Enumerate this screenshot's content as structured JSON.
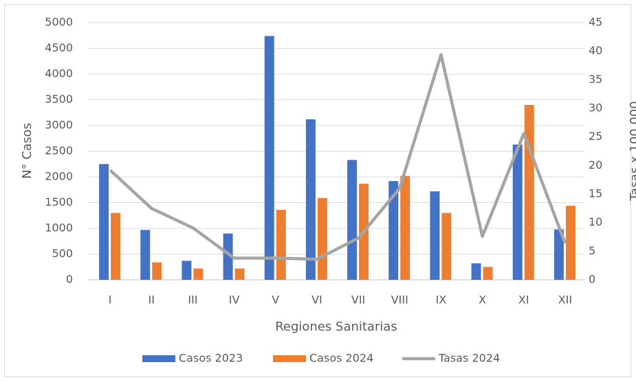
{
  "chart_data": {
    "type": "bar",
    "x_label": "Regiones Sanitarias",
    "y_label": "N° Casos",
    "y2_label": "Tasas x 100.000",
    "categories": [
      "I",
      "II",
      "III",
      "IV",
      "V",
      "VI",
      "VII",
      "VIII",
      "IX",
      "X",
      "XI",
      "XII"
    ],
    "series": [
      {
        "name": "Casos 2023",
        "color": "#4472c4",
        "type": "bar",
        "values": [
          2250,
          970,
          370,
          900,
          4740,
          3120,
          2330,
          1920,
          1720,
          320,
          2630,
          980
        ]
      },
      {
        "name": "Casos 2024",
        "color": "#ed7d31",
        "type": "bar",
        "values": [
          1300,
          340,
          220,
          220,
          1360,
          1590,
          1870,
          2020,
          1300,
          250,
          3400,
          1440
        ]
      },
      {
        "name": "Tasas 2024",
        "color": "#a5a5a5",
        "type": "line",
        "axis": "y2",
        "values": [
          19.2,
          12.5,
          9.1,
          3.8,
          3.8,
          3.6,
          7.3,
          16,
          39.4,
          7.6,
          25.6,
          6.4
        ]
      }
    ],
    "ylim": [
      0,
      5000
    ],
    "yticks": [
      0,
      500,
      1000,
      1500,
      2000,
      2500,
      3000,
      3500,
      4000,
      4500,
      5000
    ],
    "y2lim": [
      0,
      45
    ],
    "y2ticks": [
      0,
      5,
      10,
      15,
      20,
      25,
      30,
      35,
      40,
      45
    ],
    "grid": true,
    "legend": "bottom"
  }
}
